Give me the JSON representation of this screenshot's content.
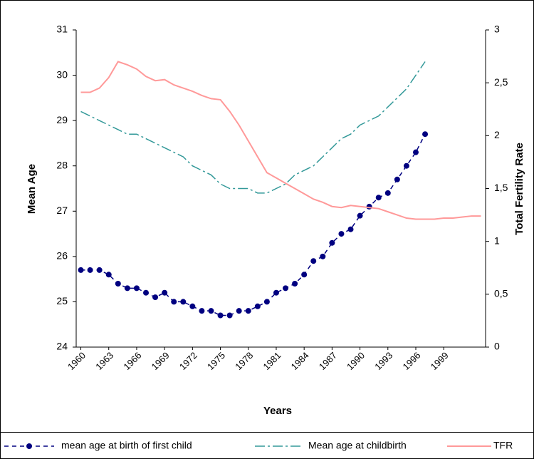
{
  "chart_data": {
    "type": "line",
    "y_label": "Mean Age",
    "y2_label": "Total Fertility Rate",
    "x_label": "Years",
    "categories": [
      "1960",
      null,
      null,
      "1963",
      null,
      null,
      "1966",
      null,
      null,
      "1969",
      null,
      null,
      "1972",
      null,
      null,
      "1975",
      null,
      null,
      "1978",
      null,
      null,
      "1981",
      null,
      null,
      "1984",
      null,
      null,
      "1987",
      null,
      null,
      "1990",
      null,
      null,
      "1993",
      null,
      null,
      "1996",
      null,
      null,
      "1999",
      null,
      null,
      null,
      null
    ],
    "ylim": [
      24,
      31
    ],
    "yticks": [
      24,
      25,
      26,
      27,
      28,
      29,
      30,
      31
    ],
    "y2lim": [
      0,
      3
    ],
    "y2ticks": [
      0,
      {
        "value": 0.5,
        "label": "0,5"
      },
      1,
      {
        "value": 1.5,
        "label": "1,5"
      },
      2,
      {
        "value": 2.5,
        "label": "2,5"
      },
      3
    ],
    "series": [
      {
        "name": "mean age at birth of first child",
        "color": "#000080",
        "style": "dashed-dots",
        "values": [
          25.7,
          25.7,
          25.7,
          25.6,
          25.4,
          25.3,
          25.3,
          25.2,
          25.1,
          25.2,
          25.0,
          25.0,
          24.9,
          24.8,
          24.8,
          24.7,
          24.7,
          24.8,
          24.8,
          24.9,
          25.0,
          25.2,
          25.3,
          25.4,
          25.6,
          25.9,
          26.0,
          26.3,
          26.5,
          26.6,
          26.9,
          27.1,
          27.3,
          27.4,
          27.7,
          28.0,
          28.3,
          28.7,
          null,
          null,
          null,
          null,
          null,
          null
        ]
      },
      {
        "name": "Mean age at childbirth",
        "color": "#339999",
        "style": "dash-dot",
        "values": [
          29.2,
          29.1,
          29.0,
          28.9,
          28.8,
          28.7,
          28.7,
          28.6,
          28.5,
          28.4,
          28.3,
          28.2,
          28.0,
          27.9,
          27.8,
          27.6,
          27.5,
          27.5,
          27.5,
          27.4,
          27.4,
          27.5,
          27.6,
          27.8,
          27.9,
          28.0,
          28.2,
          28.4,
          28.6,
          28.7,
          28.9,
          29.0,
          29.1,
          29.3,
          29.5,
          29.7,
          30.0,
          30.3,
          null,
          null,
          null,
          null,
          null,
          null
        ]
      },
      {
        "name": "TFR",
        "color": "#ff9999",
        "style": "solid",
        "axis": "y2",
        "values": [
          2.41,
          2.41,
          2.45,
          2.55,
          2.7,
          2.67,
          2.63,
          2.56,
          2.52,
          2.53,
          2.48,
          2.45,
          2.42,
          2.38,
          2.35,
          2.34,
          2.23,
          2.1,
          1.95,
          1.8,
          1.65,
          1.6,
          1.55,
          1.5,
          1.45,
          1.4,
          1.37,
          1.33,
          1.32,
          1.34,
          1.33,
          1.32,
          1.31,
          1.28,
          1.25,
          1.22,
          1.21,
          1.21,
          1.21,
          1.22,
          1.22,
          1.23,
          1.24,
          1.24
        ]
      }
    ]
  }
}
